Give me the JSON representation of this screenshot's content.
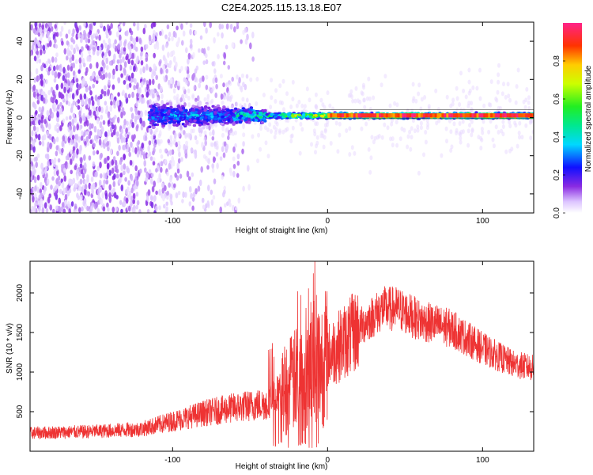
{
  "title": "C2E4.2025.115.13.18.E07",
  "chart_data": [
    {
      "type": "heatmap",
      "xlabel": "Height of straight line (km)",
      "ylabel": "Frequency (Hz)",
      "xlim": [
        -192,
        133
      ],
      "ylim": [
        -50,
        50
      ],
      "xticks": [
        -100,
        0,
        100
      ],
      "xtick_labels": [
        "-100",
        "0",
        "100"
      ],
      "yticks": [
        -40,
        -20,
        0,
        20,
        40
      ],
      "ytick_labels": [
        "-40",
        "-20",
        "0",
        "20",
        "40"
      ],
      "colorbar": {
        "label": "Normalized spectral amplitude",
        "range": [
          0,
          1
        ],
        "ticks": [
          0,
          0.2,
          0.4,
          0.6,
          0.8
        ],
        "tick_labels": [
          "0.0",
          "0.2",
          "0.4",
          "0.6",
          "0.8"
        ],
        "colormap": "rainbow (white-violet-blue-cyan-green-yellow-orange-red-pink)"
      },
      "features": {
        "noise_region_x": [
          -192,
          -58
        ],
        "central_band_x": [
          -115,
          133
        ],
        "central_band_freq_hz": 1,
        "strong_band_x": [
          -40,
          133
        ]
      }
    },
    {
      "type": "line",
      "xlabel": "Height of straight line (km)",
      "ylabel": "SNR (10 * v/v)",
      "xlim": [
        -192,
        133
      ],
      "ylim": [
        0,
        2400
      ],
      "xticks": [
        -100,
        0,
        100
      ],
      "xtick_labels": [
        "-100",
        "0",
        "100"
      ],
      "yticks": [
        500,
        1000,
        1500,
        2000
      ],
      "ytick_labels": [
        "500",
        "1000",
        "1500",
        "2000"
      ],
      "color": "#ee3333",
      "envelope": {
        "x": [
          -192,
          -150,
          -120,
          -100,
          -80,
          -60,
          -40,
          -20,
          0,
          20,
          35,
          45,
          60,
          80,
          100,
          120,
          133
        ],
        "y": [
          230,
          250,
          280,
          380,
          480,
          550,
          600,
          900,
          1200,
          1550,
          1800,
          1800,
          1650,
          1550,
          1300,
          1100,
          1050
        ]
      }
    }
  ]
}
